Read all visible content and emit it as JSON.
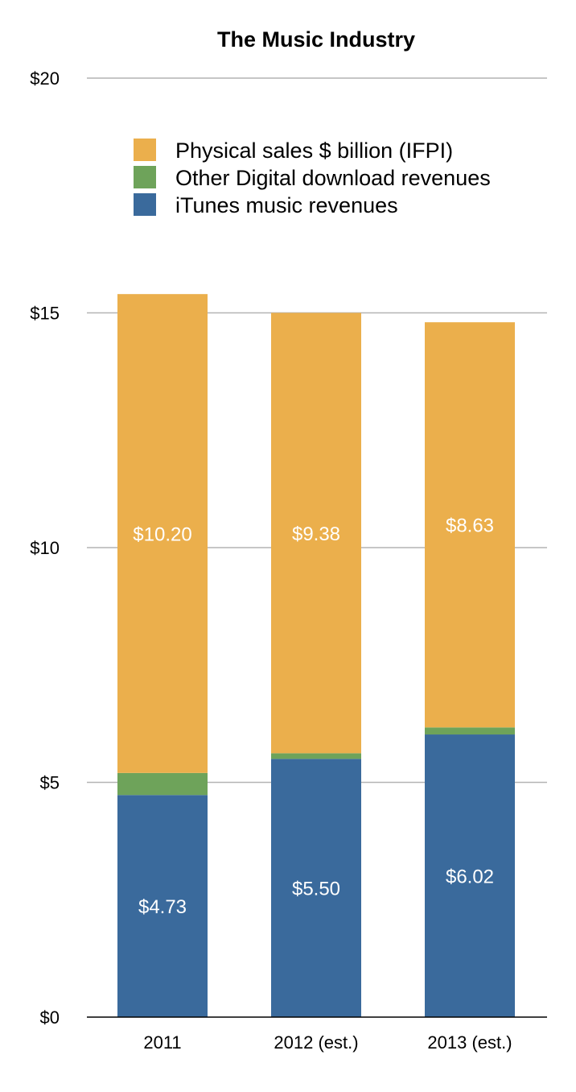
{
  "chart_data": {
    "type": "bar",
    "stacked": true,
    "title": "The Music Industry",
    "xlabel": "",
    "ylabel": "",
    "categories": [
      "2011",
      "2012 (est.)",
      "2013 (est.)"
    ],
    "ylim": [
      0,
      20
    ],
    "y_ticks": [
      0,
      5,
      10,
      15,
      20
    ],
    "y_tick_labels": [
      "$0",
      "$5",
      "$10",
      "$15",
      "$20"
    ],
    "grid": true,
    "legend_position": "top-center",
    "series": [
      {
        "name": "iTunes music revenues",
        "color": "#3a6a9c",
        "values": [
          4.73,
          5.5,
          6.02
        ],
        "labels": [
          "$4.73",
          "$5.50",
          "$6.02"
        ]
      },
      {
        "name": "Other Digital download revenues",
        "color": "#6ea35a",
        "values": [
          0.47,
          0.12,
          0.15
        ],
        "labels": [
          "",
          "",
          ""
        ]
      },
      {
        "name": "Physical sales $ billion (IFPI)",
        "color": "#ebaf4c",
        "values": [
          10.2,
          9.38,
          8.63
        ],
        "labels": [
          "$10.20",
          "$9.38",
          "$8.63"
        ]
      }
    ],
    "legend_order": [
      2,
      1,
      0
    ]
  }
}
